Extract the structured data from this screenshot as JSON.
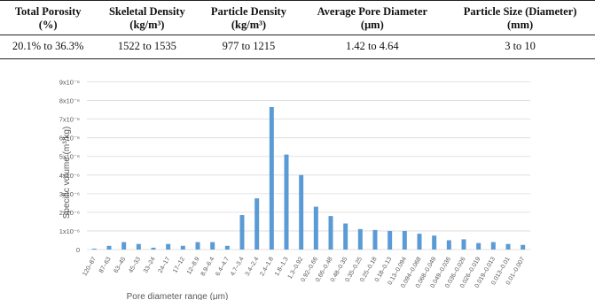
{
  "table": {
    "header": [
      [
        "Total Porosity",
        "(%)"
      ],
      [
        "Skeletal Density",
        "(kg/m³)"
      ],
      [
        "Particle Density",
        "(kg/m³)"
      ],
      [
        "Average Pore Diameter",
        "(μm)"
      ],
      [
        "Particle Size (Diameter)",
        "(mm)"
      ]
    ],
    "rows": [
      [
        "20.1% to 36.3%",
        "1522 to 1535",
        "977 to 1215",
        "1.42 to 4.64",
        "3 to 10"
      ]
    ]
  },
  "chart_data": {
    "type": "bar",
    "y_label": "Specific volume (m³/kg)",
    "x_label": "Pore diameter range (μm)",
    "color": "#5b9bd5",
    "grid": true,
    "categories": [
      "120–87",
      "87–63",
      "63–45",
      "45–33",
      "33–24",
      "24–17",
      "17–12",
      "12–8.9",
      "8.9–6.4",
      "6.4–4.7",
      "4.7–3.4",
      "3.4–2.4",
      "2.4–1.8",
      "1.8–1.3",
      "1.3–0.92",
      "0.92–0.66",
      "0.66–0.48",
      "0.48–0.35",
      "0.35–0.25",
      "0.25–0.18",
      "0.18–0.13",
      "0.13–0.094",
      "0.094–0.068",
      "0.068–0.049",
      "0.049–0.036",
      "0.036–0.026",
      "0.026–0.019",
      "0.019–0.013",
      "0.013–0.01",
      "0.01–0.007"
    ],
    "values": [
      5e-08,
      2e-07,
      4e-07,
      3e-07,
      1e-07,
      3e-07,
      2e-07,
      4e-07,
      4e-07,
      2e-07,
      1.85e-06,
      2.75e-06,
      7.65e-06,
      5.1e-06,
      4e-06,
      2.3e-06,
      1.8e-06,
      1.4e-06,
      1.1e-06,
      1.05e-06,
      1e-06,
      1e-06,
      8.5e-07,
      7.5e-07,
      5e-07,
      5.5e-07,
      3.5e-07,
      4e-07,
      3e-07,
      2.5e-07
    ],
    "ylim": [
      0,
      9.5e-06
    ],
    "yticks": [
      0,
      {
        "value": 1e-06,
        "label": "1x10⁻⁶"
      },
      {
        "value": 2e-06,
        "label": "2x10⁻⁶"
      },
      {
        "value": 3e-06,
        "label": "3x10⁻⁶"
      },
      {
        "value": 4e-06,
        "label": "4x10⁻⁶"
      },
      {
        "value": 5e-06,
        "label": "5x10⁻⁶"
      },
      {
        "value": 6e-06,
        "label": "6x10⁻⁶"
      },
      {
        "value": 7e-06,
        "label": "7x10⁻⁶"
      },
      {
        "value": 8e-06,
        "label": "8x10⁻⁶"
      },
      {
        "value": 9e-06,
        "label": "9x10⁻⁶"
      }
    ]
  }
}
